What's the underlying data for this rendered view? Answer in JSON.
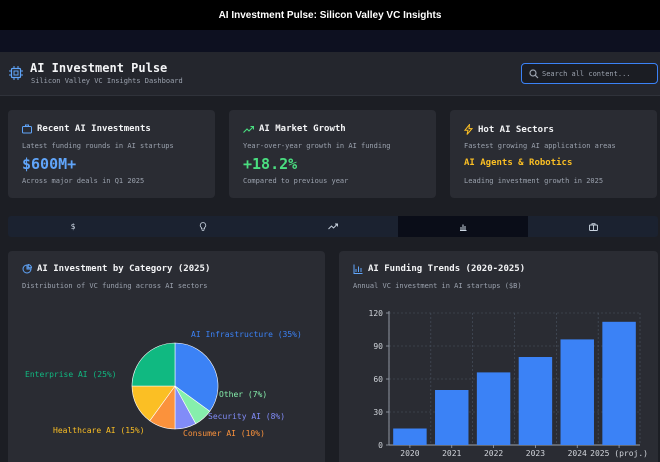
{
  "window": {
    "title": "AI Investment Pulse: Silicon Valley VC Insights"
  },
  "header": {
    "title": "AI Investment Pulse",
    "subtitle": "Silicon Valley VC Insights Dashboard",
    "search_placeholder": "Search all content..."
  },
  "cards": [
    {
      "icon": "briefcase-icon",
      "title": "Recent AI Investments",
      "subtitle": "Latest funding rounds in AI startups",
      "value": "$600M+",
      "value_color": "#60a5fa",
      "note": "Across major deals in Q1 2025"
    },
    {
      "icon": "trending-up-icon",
      "title": "AI Market Growth",
      "subtitle": "Year-over-year growth in AI funding",
      "value": "+18.2%",
      "value_color": "#4ade80",
      "note": "Compared to previous year"
    },
    {
      "icon": "lightning-icon",
      "title": "Hot AI Sectors",
      "subtitle": "Fastest growing AI application areas",
      "value": "AI Agents & Robotics",
      "value_color": "#fbbf24",
      "note": "Leading investment growth in 2025"
    }
  ],
  "tabs": [
    {
      "icon": "dollar-icon",
      "glyph": "$",
      "active": false
    },
    {
      "icon": "lightbulb-icon",
      "glyph": "💡",
      "active": false
    },
    {
      "icon": "trend-icon",
      "glyph": "↗",
      "active": false
    },
    {
      "icon": "bar-chart-icon",
      "glyph": "▐",
      "active": true
    },
    {
      "icon": "briefcase-icon",
      "glyph": "▣",
      "active": false
    }
  ],
  "colors": {
    "accent": "#3b82f6",
    "bar": "#3b82f6"
  },
  "chart_data": [
    {
      "type": "pie",
      "title": "AI Investment by Category (2025)",
      "subtitle": "Distribution of VC funding across AI sectors",
      "slices": [
        {
          "label": "AI Infrastructure (35%)",
          "value": 35,
          "color": "#3b82f6"
        },
        {
          "label": "Other (7%)",
          "value": 7,
          "color": "#86efac"
        },
        {
          "label": "Security AI (8%)",
          "value": 8,
          "color": "#818cf8"
        },
        {
          "label": "Consumer AI (10%)",
          "value": 10,
          "color": "#fb923c"
        },
        {
          "label": "Healthcare AI (15%)",
          "value": 15,
          "color": "#fbbf24"
        },
        {
          "label": "Enterprise AI (25%)",
          "value": 25,
          "color": "#10b981"
        }
      ]
    },
    {
      "type": "bar",
      "title": "AI Funding Trends (2020-2025)",
      "subtitle": "Annual VC investment in AI startups ($B)",
      "categories": [
        "2020",
        "2021",
        "2022",
        "2023",
        "2024",
        "2025 (proj.)"
      ],
      "values": [
        15,
        50,
        66,
        80,
        96,
        112
      ],
      "yticks": [
        0,
        30,
        60,
        90,
        120
      ],
      "ylim": [
        0,
        120
      ],
      "grid": true
    }
  ]
}
